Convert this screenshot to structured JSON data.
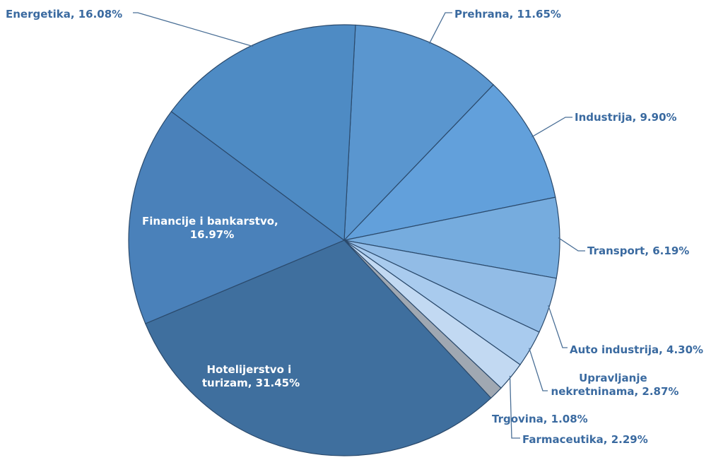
{
  "chart_data": {
    "type": "pie",
    "title": "",
    "slices": [
      {
        "label": "Prehrana, 11.65%",
        "name": "Prehrana",
        "value": 11.65,
        "color": "#5a96cf"
      },
      {
        "label": "Industrija, 9.90%",
        "name": "Industrija",
        "value": 9.9,
        "color": "#62a0db"
      },
      {
        "label": "Transport, 6.19%",
        "name": "Transport",
        "value": 6.19,
        "color": "#76acde"
      },
      {
        "label": "Auto industrija,  4.30%",
        "name": "Auto industrija",
        "value": 4.3,
        "color": "#92bce6"
      },
      {
        "label": "Upravljanje nekretninama, 2.87%",
        "name": "Upravljanje nekretninama",
        "value": 2.87,
        "color": "#a9cbee"
      },
      {
        "label": "Farmaceutika, 2.29%",
        "name": "Farmaceutika",
        "value": 2.29,
        "color": "#c2d9f2"
      },
      {
        "label": "Trgovina, 1.08%",
        "name": "Trgovina",
        "value": 1.08,
        "color": "#a0a8b2"
      },
      {
        "label": "Hotelijerstvo i turizam, 31.45%",
        "name": "Hotelijerstvo i turizam",
        "value": 31.45,
        "color": "#3f6f9e"
      },
      {
        "label": "Financije i bankarstvo, 16.97%",
        "name": "Financije i bankarstvo",
        "value": 16.97,
        "color": "#4a81ba"
      },
      {
        "label": "Energetika, 16.08%",
        "name": "Energetika",
        "value": 16.08,
        "color": "#4e8bc4"
      }
    ]
  }
}
